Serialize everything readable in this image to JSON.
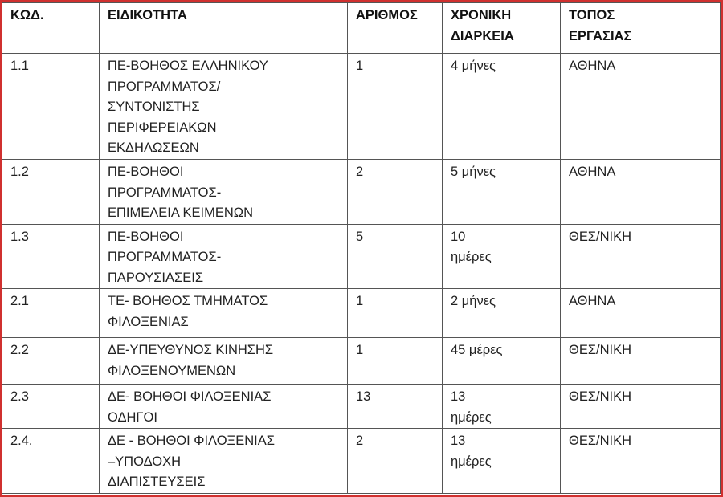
{
  "colors": {
    "frame": "#d0302f",
    "border": "#555555"
  },
  "table": {
    "headers": [
      "ΚΩΔ.",
      "ΕΙΔΙΚΟΤΗΤΑ",
      "ΑΡΙΘΜΟΣ",
      "ΧΡΟΝΙΚΗ\nΔΙΑΡΚΕΙΑ",
      "ΤΟΠΟΣ\nΕΡΓΑΣΙΑΣ"
    ],
    "rows": [
      [
        "1.1",
        "ΠΕ-ΒΟΗΘΟΣ   ΕΛΛΗΝΙΚΟΥ\nΠΡΟΓΡΑΜΜΑΤΟΣ/\nΣΥΝΤΟΝΙΣΤΗΣ\nΠΕΡΙΦΕΡΕΙΑΚΩΝ\nΕΚΔΗΛΩΣΕΩΝ",
        "1",
        "4 μήνες",
        "ΑΘΗΝΑ"
      ],
      [
        "1.2",
        "ΠΕ-ΒΟΗΘΟΙ\nΠΡΟΓΡΑΜΜΑΤΟΣ-\nΕΠΙΜΕΛΕΙΑ ΚΕΙΜΕΝΩΝ",
        "2",
        "5 μήνες",
        "ΑΘΗΝΑ"
      ],
      [
        "1.3",
        "ΠΕ-ΒΟΗΘΟΙ\nΠΡΟΓΡΑΜΜΑΤΟΣ-\nΠΑΡΟΥΣΙΑΣΕΙΣ",
        "5",
        "10\nημέρες",
        "ΘΕΣ/ΝΙΚΗ"
      ],
      [
        "2.1",
        "ΤΕ- ΒΟΗΘΟΣ  ΤΜΗΜΑΤΟΣ\nΦΙΛΟΞΕΝΙΑΣ",
        "1",
        "2 μήνες",
        "ΑΘΗΝΑ"
      ],
      [
        "2.2",
        "ΔΕ-ΥΠΕΥΘΥΝΟΣ ΚΙΝΗΣΗΣ\nΦΙΛΟΞΕΝΟΥΜΕΝΩΝ",
        "1",
        "45 μέρες",
        "ΘΕΣ/ΝΙΚΗ"
      ],
      [
        "2.3",
        "ΔΕ- ΒΟΗΘΟΙ ΦΙΛΟΞΕΝΙΑΣ\nΟΔΗΓΟΙ",
        "13",
        "13\nημέρες",
        "ΘΕΣ/ΝΙΚΗ"
      ],
      [
        "2.4.",
        "ΔΕ - ΒΟΗΘΟΙ ΦΙΛΟΞΕΝΙΑΣ\n–ΥΠΟΔΟΧΗ\nΔΙΑΠΙΣΤΕΥΣΕΙΣ",
        "2",
        "13\nημέρες",
        "ΘΕΣ/ΝΙΚΗ"
      ]
    ]
  }
}
